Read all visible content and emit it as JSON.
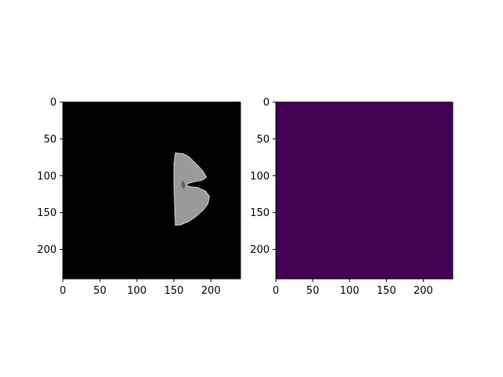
{
  "chart_data": [
    {
      "type": "heatmap",
      "title": "",
      "xlabel": "",
      "ylabel": "",
      "colormap": "gray",
      "image_size": [
        240,
        240
      ],
      "xlim": [
        0,
        240
      ],
      "ylim": [
        240,
        0
      ],
      "x_ticks": [
        0,
        50,
        100,
        150,
        200
      ],
      "y_ticks": [
        0,
        50,
        100,
        150,
        200
      ],
      "x_tick_labels": [
        "0",
        "50",
        "100",
        "150",
        "200"
      ],
      "y_tick_labels": [
        "0",
        "50",
        "100",
        "150",
        "200"
      ],
      "background_color": "#000000",
      "region": {
        "description": "bright brain slice segment",
        "fill_color": "#9a9a9a",
        "outline": [
          [
            152,
            69
          ],
          [
            162,
            70
          ],
          [
            170,
            74
          ],
          [
            176,
            80
          ],
          [
            184,
            88
          ],
          [
            190,
            95
          ],
          [
            194,
            102
          ],
          [
            188,
            106
          ],
          [
            178,
            108
          ],
          [
            170,
            110
          ],
          [
            166,
            113
          ],
          [
            172,
            115
          ],
          [
            182,
            116
          ],
          [
            193,
            121
          ],
          [
            198,
            128
          ],
          [
            196,
            138
          ],
          [
            190,
            146
          ],
          [
            180,
            155
          ],
          [
            170,
            162
          ],
          [
            158,
            167
          ],
          [
            152,
            167
          ],
          [
            151,
            140
          ],
          [
            150,
            110
          ],
          [
            150,
            85
          ]
        ]
      }
    },
    {
      "type": "heatmap",
      "title": "",
      "xlabel": "",
      "ylabel": "",
      "colormap": "viridis",
      "image_size": [
        240,
        240
      ],
      "xlim": [
        0,
        240
      ],
      "ylim": [
        240,
        0
      ],
      "x_ticks": [
        0,
        50,
        100,
        150,
        200
      ],
      "y_ticks": [
        0,
        50,
        100,
        150,
        200
      ],
      "x_tick_labels": [
        "0",
        "50",
        "100",
        "150",
        "200"
      ],
      "y_tick_labels": [
        "0",
        "50",
        "100",
        "150",
        "200"
      ],
      "uniform_value": 0,
      "fill_color": "#440154"
    }
  ]
}
